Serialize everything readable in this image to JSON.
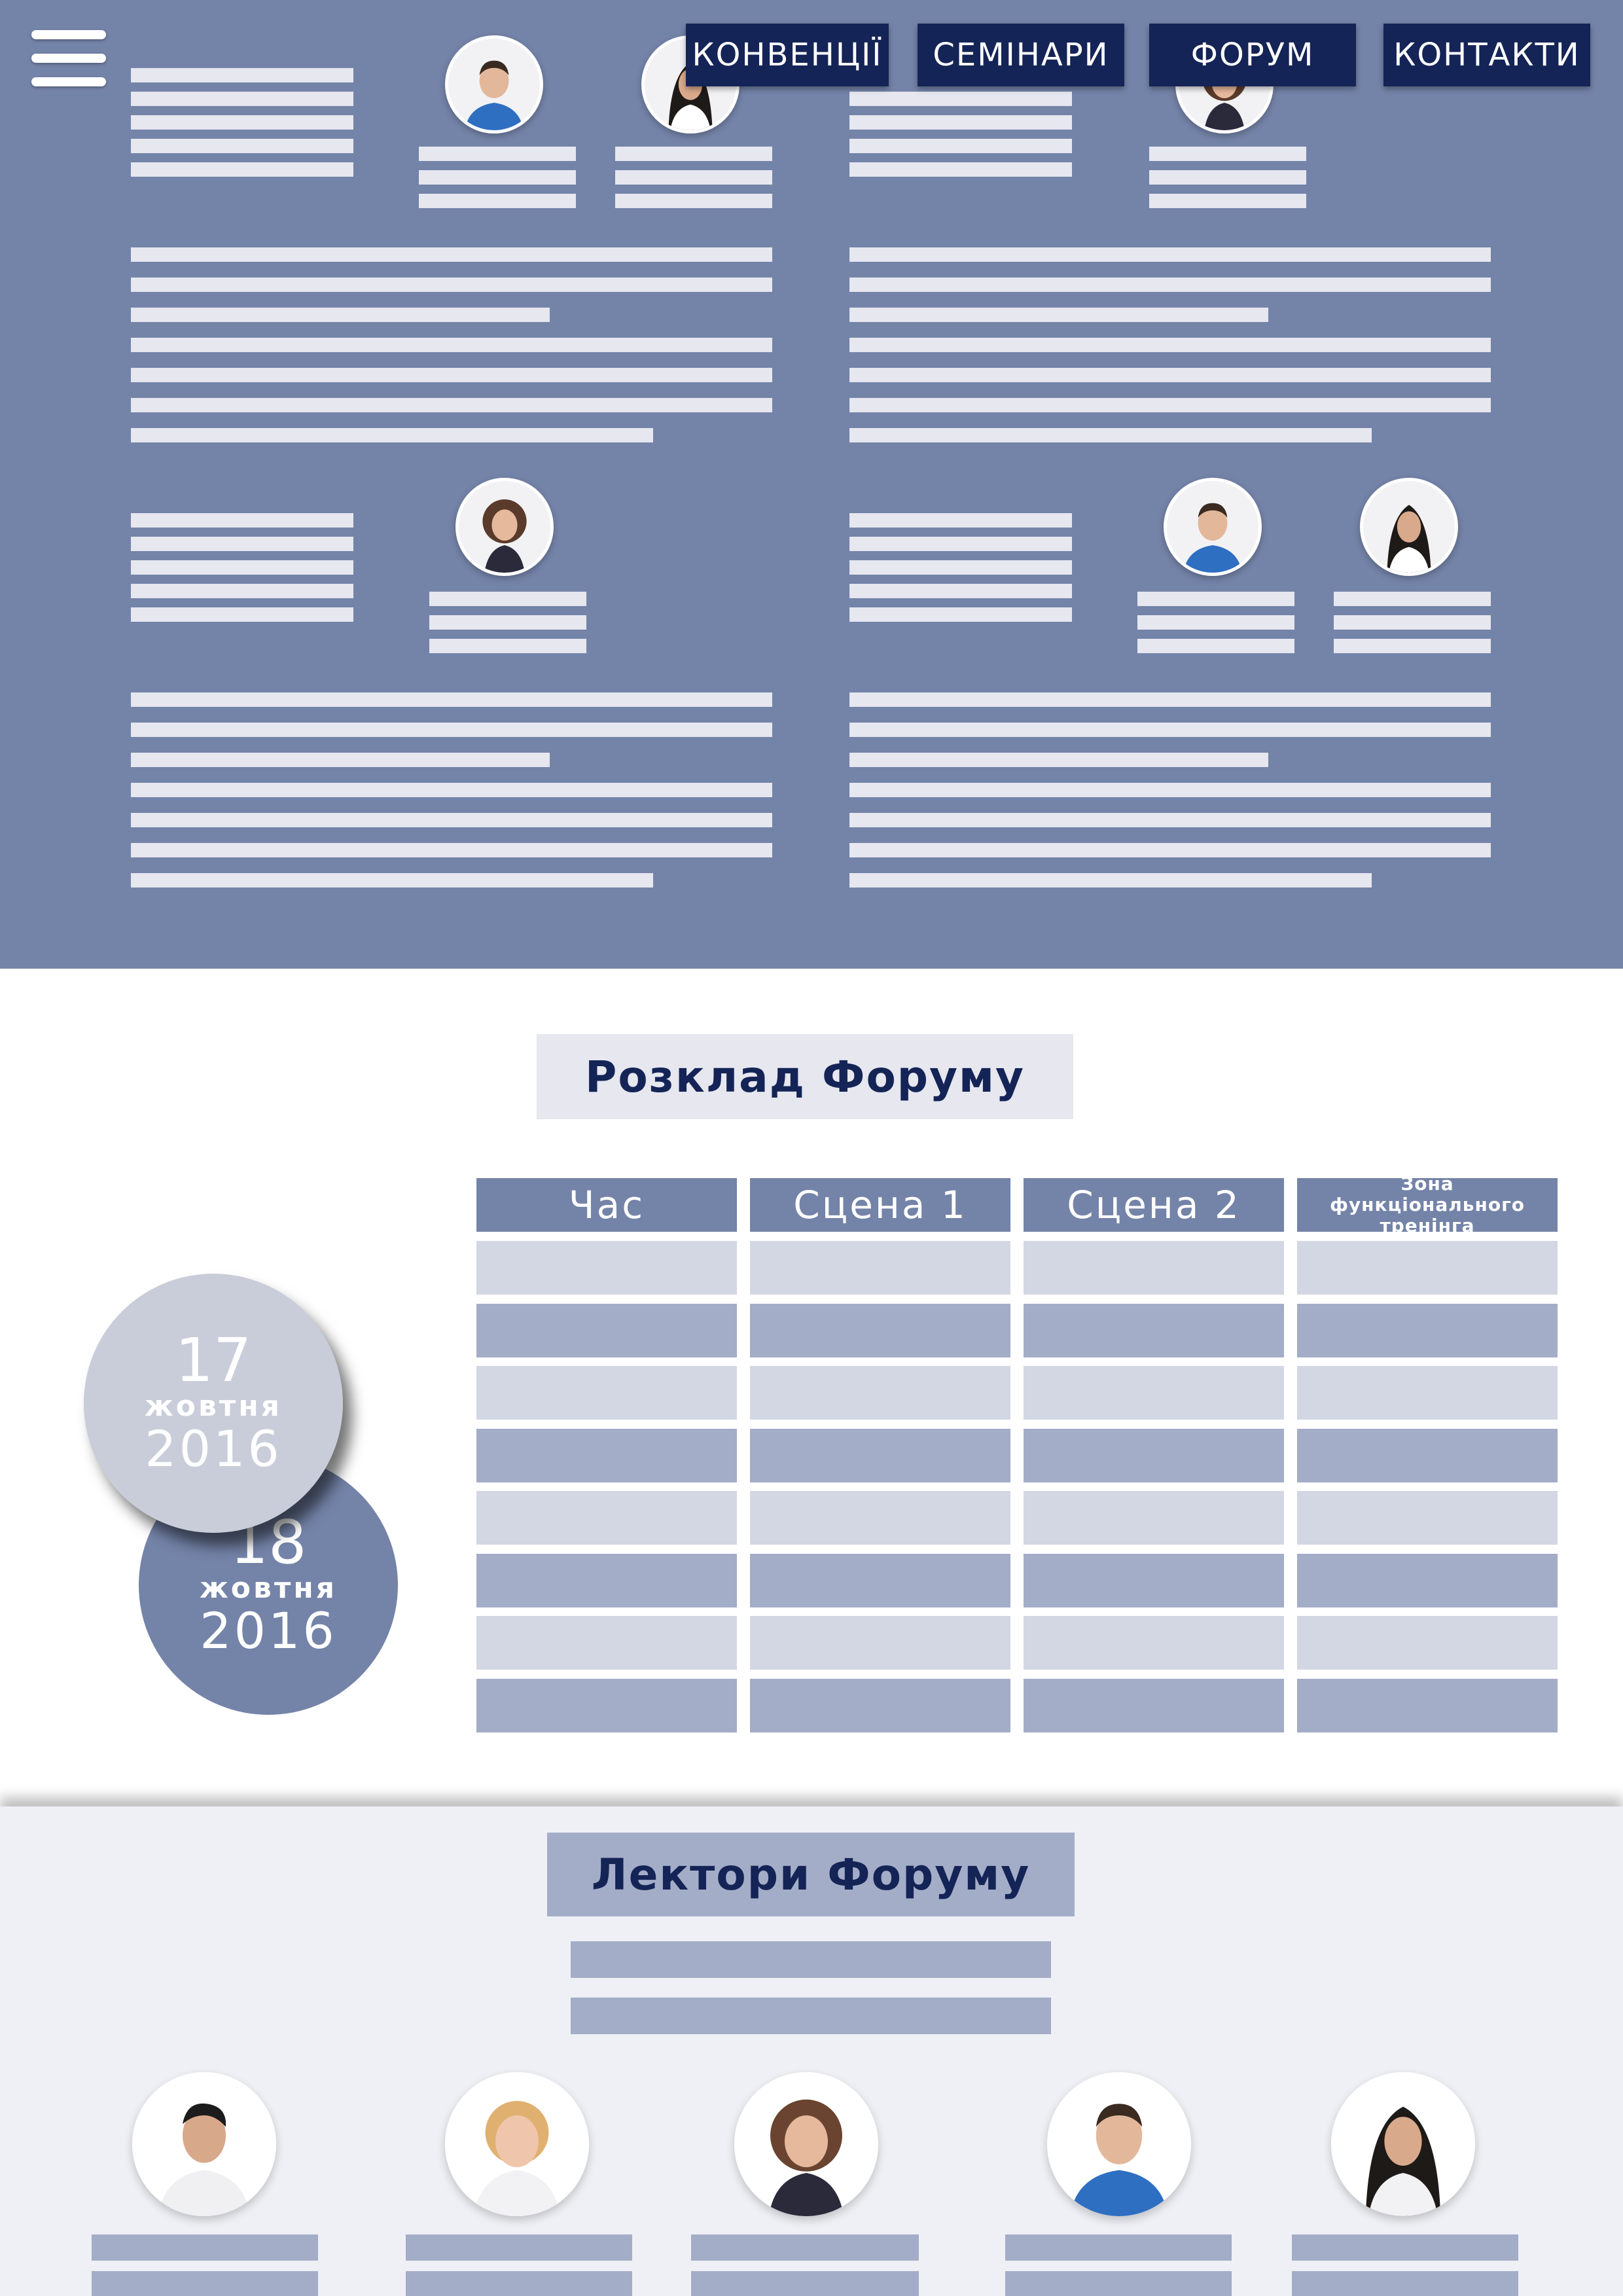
{
  "nav": {
    "items": [
      "КОНВЕНЦІЇ",
      "СЕМІНАРИ",
      "ФОРУМ",
      "КОНТАКТИ"
    ],
    "menu_icon": "hamburger-menu-icon"
  },
  "schedule": {
    "title": "Розклад Форуму",
    "columns": [
      "Час",
      "Сцена 1",
      "Сцена 2",
      "Зона функціонального тренінга"
    ],
    "dates": [
      {
        "day": "17",
        "month": "жовтня",
        "year": "2016",
        "active": true
      },
      {
        "day": "18",
        "month": "жовтня",
        "year": "2016",
        "active": false
      }
    ]
  },
  "lecturers": {
    "title": "Лектори Форуму"
  },
  "colors": {
    "band": "#7483a8",
    "nav_bg": "#152456",
    "placeholder": "#e6e7ef",
    "row_light": "#d3d7e3",
    "row_dark": "#a3adc8",
    "title_bg": "#e6e7ef",
    "lecturers_bg": "#eff0f5"
  }
}
